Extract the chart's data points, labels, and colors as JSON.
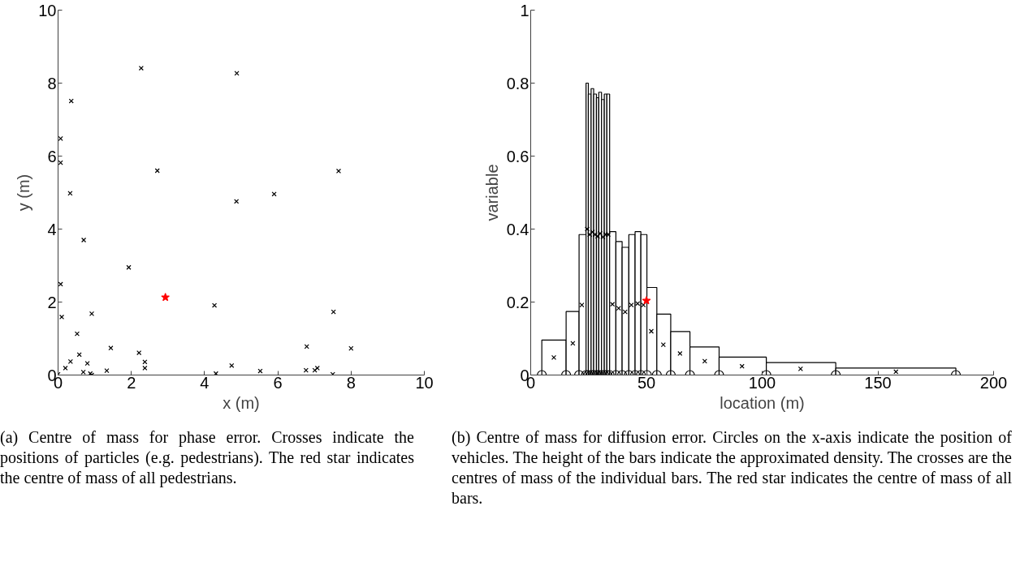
{
  "chart_data": [
    {
      "type": "scatter",
      "xlabel": "x (m)",
      "ylabel": "y (m)",
      "xlim": [
        0,
        10
      ],
      "ylim": [
        0,
        10
      ],
      "xticks": [
        0,
        2,
        4,
        6,
        8,
        10
      ],
      "yticks": [
        0,
        2,
        4,
        6,
        8,
        10
      ],
      "series": [
        {
          "color": "#000000",
          "marker": "cross",
          "x": [
            2.27,
            4.88,
            0.36,
            0.07,
            0.07,
            2.71,
            0.33,
            4.87,
            0.7,
            1.93,
            0.07,
            4.27,
            0.1,
            0.92,
            0.52,
            1.44,
            0.58,
            2.21,
            0.34,
            0.8,
            2.37,
            0.2,
            2.37,
            0.69,
            0.88,
            0.92,
            1.33,
            0.0,
            4.31,
            4.74,
            7.66,
            5.9,
            7.52,
            6.79,
            8.0,
            5.52,
            6.77,
            7.01,
            7.08,
            7.5
          ],
          "values": [
            8.41,
            8.27,
            7.51,
            6.48,
            5.82,
            5.6,
            4.98,
            4.76,
            3.7,
            2.95,
            2.49,
            1.91,
            1.59,
            1.68,
            1.13,
            0.74,
            0.56,
            0.61,
            0.37,
            0.32,
            0.36,
            0.19,
            0.19,
            0.08,
            0.04,
            0.0,
            0.12,
            0.02,
            0.04,
            0.26,
            5.59,
            4.96,
            1.73,
            0.78,
            0.73,
            0.11,
            0.13,
            0.13,
            0.19,
            0.02
          ]
        },
        {
          "color": "#ff0000",
          "marker": "star",
          "x": [
            2.93
          ],
          "values": [
            2.13
          ]
        }
      ],
      "annotations": [
        "(a) Centre of mass for phase error. Crosses indicate the positions of particles (e.g. pedestrians). The red star indicates the centre of mass of all pedestrians."
      ]
    },
    {
      "type": "histogram",
      "xlabel": "location (m)",
      "ylabel": "variable",
      "xlim": [
        0,
        200
      ],
      "ylim": [
        0,
        1
      ],
      "xticks": [
        0,
        50,
        100,
        150,
        200
      ],
      "yticks": [
        0,
        0.2,
        0.4,
        0.6,
        0.8,
        1
      ],
      "series": [
        {
          "type": "histogram",
          "color": "#000000",
          "bins": [
            4.8,
            15.3,
            20.9,
            23.9,
            24.9,
            26.1,
            27.2,
            28.4,
            29.4,
            30.6,
            31.8,
            32.9,
            34.1,
            36.8,
            39.5,
            42.4,
            45.1,
            47.6,
            50.2,
            54.5,
            60.5,
            68.8,
            81.4,
            101.8,
            131.8,
            183.7
          ],
          "values": [
            0.096,
            0.174,
            0.385,
            0.8,
            0.77,
            0.785,
            0.77,
            0.76,
            0.775,
            0.755,
            0.77,
            0.77,
            0.393,
            0.366,
            0.35,
            0.385,
            0.393,
            0.385,
            0.24,
            0.167,
            0.119,
            0.077,
            0.049,
            0.034,
            0.019
          ]
        },
        {
          "type": "scatter",
          "color": "#000000",
          "marker": "cross",
          "x": [
            10.0,
            18.2,
            22.1,
            24.4,
            25.5,
            26.7,
            27.8,
            28.9,
            30.0,
            31.2,
            32.4,
            33.5,
            35.3,
            38.0,
            40.8,
            43.5,
            46.2,
            48.7,
            52.1,
            57.3,
            64.5,
            75.2,
            91.3,
            116.6,
            157.8
          ],
          "values": [
            0.048,
            0.087,
            0.192,
            0.4,
            0.385,
            0.392,
            0.385,
            0.38,
            0.388,
            0.378,
            0.385,
            0.385,
            0.194,
            0.183,
            0.173,
            0.192,
            0.196,
            0.192,
            0.12,
            0.083,
            0.059,
            0.038,
            0.024,
            0.017,
            0.009
          ]
        },
        {
          "type": "scatter",
          "color": "#000000",
          "marker": "circle",
          "x": [
            4.8,
            15.3,
            20.9,
            23.9,
            24.9,
            26.1,
            27.2,
            28.4,
            29.4,
            30.6,
            31.8,
            32.9,
            34.1,
            36.8,
            39.5,
            42.4,
            45.1,
            47.6,
            50.2,
            54.5,
            60.5,
            68.8,
            81.4,
            101.8,
            131.8,
            183.7
          ],
          "values": [
            0,
            0,
            0,
            0,
            0,
            0,
            0,
            0,
            0,
            0,
            0,
            0,
            0,
            0,
            0,
            0,
            0,
            0,
            0,
            0,
            0,
            0,
            0,
            0,
            0,
            0
          ]
        },
        {
          "type": "scatter",
          "color": "#ff0000",
          "marker": "star",
          "x": [
            50.0
          ],
          "values": [
            0.204
          ]
        }
      ],
      "annotations": [
        "(b) Centre of mass for diffusion error. Circles on the x-axis indicate the position of vehicles. The height of the bars indicate the approximated density. The crosses are the centres of mass of the individual bars. The red star indicates the centre of mass of all bars."
      ]
    }
  ]
}
